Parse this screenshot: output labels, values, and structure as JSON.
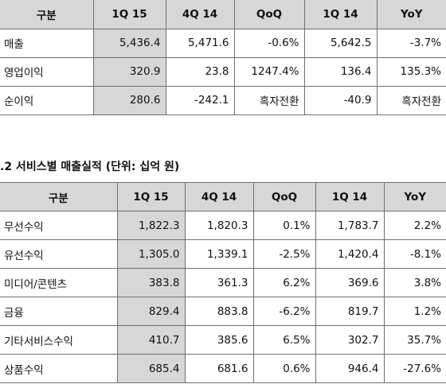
{
  "table1": {
    "headers": [
      "구분",
      "1Q 15",
      "4Q 14",
      "QoQ",
      "1Q 14",
      "YoY"
    ],
    "rows": [
      [
        "매출",
        "5,436.4",
        "5,471.6",
        "-0.6%",
        "5,642.5",
        "-3.7%"
      ],
      [
        "영업이익",
        "320.9",
        "23.8",
        "1247.4%",
        "136.4",
        "135.3%"
      ],
      [
        "순이익",
        "280.6",
        "-242.1",
        "흑자전환",
        "-40.9",
        "흑자전환"
      ]
    ]
  },
  "section2": {
    "title": ".2 서비스별 매출실적 (단위: 십억 원)"
  },
  "table2": {
    "headers": [
      "구분",
      "1Q 15",
      "4Q 14",
      "QoQ",
      "1Q 14",
      "YoY"
    ],
    "rows": [
      [
        "무선수익",
        "1,822.3",
        "1,820.3",
        "0.1%",
        "1,783.7",
        "2.2%"
      ],
      [
        "유선수익",
        "1,305.0",
        "1,339.1",
        "-2.5%",
        "1,420.4",
        "-8.1%"
      ],
      [
        "미디어/콘텐츠",
        "383.8",
        "361.3",
        "6.2%",
        "369.6",
        "3.8%"
      ],
      [
        "금융",
        "829.4",
        "883.8",
        "-6.2%",
        "819.7",
        "1.2%"
      ],
      [
        "기타서비스수익",
        "410.7",
        "385.6",
        "6.5%",
        "302.7",
        "35.7%"
      ],
      [
        "상품수익",
        "685.4",
        "681.6",
        "0.6%",
        "946.4",
        "-27.6%"
      ]
    ]
  },
  "colors": {
    "header_bg": "#d7d7d7",
    "highlight_col_bg": "#d7d7d7",
    "border": "#6f6f6f"
  }
}
